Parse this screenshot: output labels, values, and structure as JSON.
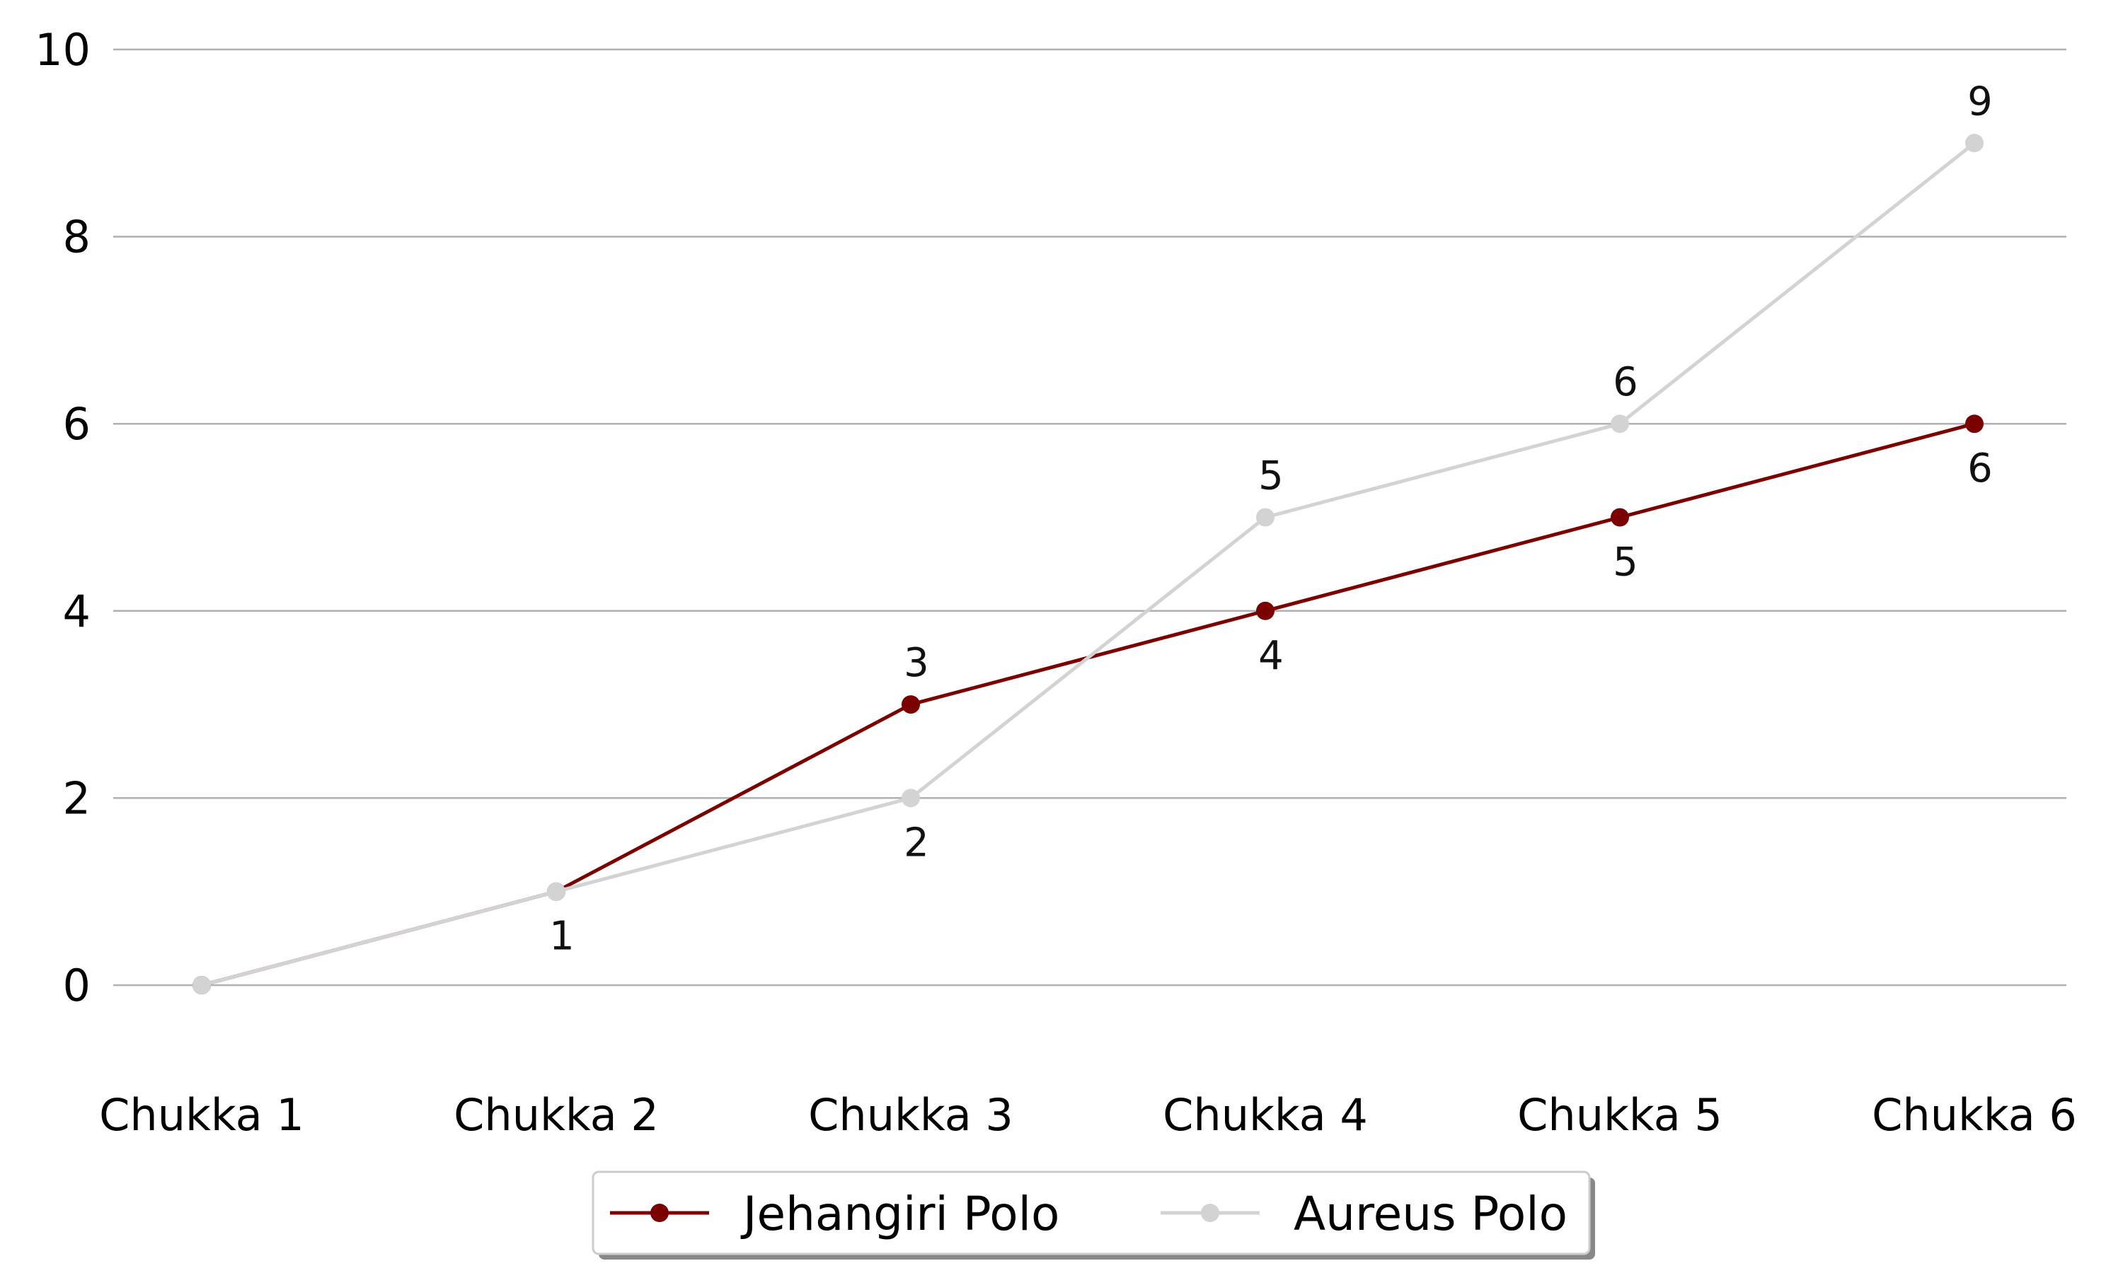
{
  "chart_data": {
    "type": "line",
    "title": "",
    "xlabel": "",
    "ylabel": "",
    "categories": [
      "Chukka 1",
      "Chukka 2",
      "Chukka 3",
      "Chukka 4",
      "Chukka 5",
      "Chukka 6"
    ],
    "ylim": [
      -1,
      10
    ],
    "yticks": [
      0,
      2,
      4,
      6,
      8,
      10
    ],
    "grid": "horizontal",
    "legend_position": "bottom-center",
    "series": [
      {
        "name": "Jehangiri Polo",
        "color": "#7b0000",
        "values": [
          0,
          1,
          3,
          4,
          5,
          6
        ]
      },
      {
        "name": "Aureus Polo",
        "color": "#d3d3d3",
        "values": [
          0,
          1,
          2,
          5,
          6,
          9
        ]
      }
    ],
    "data_labels": [
      {
        "category": "Chukka 2",
        "series": "Jehangiri Polo",
        "text": "1"
      },
      {
        "category": "Chukka 3",
        "series": "Jehangiri Polo",
        "text": "3"
      },
      {
        "category": "Chukka 3",
        "series": "Aureus Polo",
        "text": "2"
      },
      {
        "category": "Chukka 4",
        "series": "Aureus Polo",
        "text": "5"
      },
      {
        "category": "Chukka 4",
        "series": "Jehangiri Polo",
        "text": "4"
      },
      {
        "category": "Chukka 5",
        "series": "Aureus Polo",
        "text": "6"
      },
      {
        "category": "Chukka 5",
        "series": "Jehangiri Polo",
        "text": "5"
      },
      {
        "category": "Chukka 6",
        "series": "Aureus Polo",
        "text": "9"
      },
      {
        "category": "Chukka 6",
        "series": "Jehangiri Polo",
        "text": "6"
      }
    ]
  }
}
